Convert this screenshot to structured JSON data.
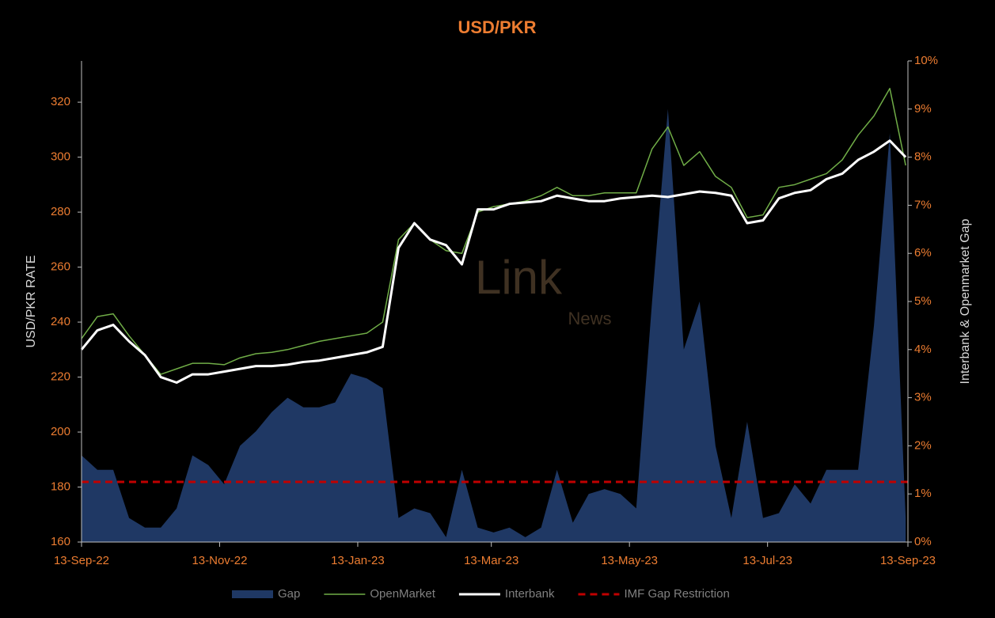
{
  "chart_data": {
    "type": "line",
    "title": "USD/PKR",
    "ylabel": "USD/PKR RATE",
    "y2label": "Interbank & Openmarket Gap",
    "watermark": [
      "Link",
      "News"
    ],
    "x": [
      "2022-09-13",
      "2022-09-20",
      "2022-09-27",
      "2022-10-04",
      "2022-10-11",
      "2022-10-18",
      "2022-10-25",
      "2022-11-01",
      "2022-11-08",
      "2022-11-15",
      "2022-11-22",
      "2022-11-29",
      "2022-12-06",
      "2022-12-13",
      "2022-12-20",
      "2022-12-27",
      "2023-01-03",
      "2023-01-10",
      "2023-01-17",
      "2023-01-24",
      "2023-01-31",
      "2023-02-07",
      "2023-02-14",
      "2023-02-21",
      "2023-02-28",
      "2023-03-07",
      "2023-03-14",
      "2023-03-21",
      "2023-03-28",
      "2023-04-04",
      "2023-04-11",
      "2023-04-18",
      "2023-04-25",
      "2023-05-02",
      "2023-05-09",
      "2023-05-16",
      "2023-05-23",
      "2023-05-30",
      "2023-06-06",
      "2023-06-13",
      "2023-06-20",
      "2023-06-27",
      "2023-07-04",
      "2023-07-11",
      "2023-07-18",
      "2023-07-25",
      "2023-08-01",
      "2023-08-08",
      "2023-08-15",
      "2023-08-22",
      "2023-08-29",
      "2023-09-05",
      "2023-09-12"
    ],
    "xlim": [
      "2022-09-13",
      "2023-09-13"
    ],
    "xticks": [
      {
        "value": "2022-09-13",
        "label": "13-Sep-22"
      },
      {
        "value": "2022-11-13",
        "label": "13-Nov-22"
      },
      {
        "value": "2023-01-13",
        "label": "13-Jan-23"
      },
      {
        "value": "2023-03-13",
        "label": "13-Mar-23"
      },
      {
        "value": "2023-05-13",
        "label": "13-May-23"
      },
      {
        "value": "2023-07-13",
        "label": "13-Jul-23"
      },
      {
        "value": "2023-09-13",
        "label": "13-Sep-23"
      }
    ],
    "ylim": [
      160,
      335
    ],
    "yticks": [
      160,
      180,
      200,
      220,
      240,
      260,
      280,
      300,
      320
    ],
    "y2lim": [
      0,
      10
    ],
    "y2ticks": [
      {
        "value": 0,
        "label": "0%"
      },
      {
        "value": 1,
        "label": "1%"
      },
      {
        "value": 2,
        "label": "2%"
      },
      {
        "value": 3,
        "label": "3%"
      },
      {
        "value": 4,
        "label": "4%"
      },
      {
        "value": 5,
        "label": "5%"
      },
      {
        "value": 6,
        "label": "6%"
      },
      {
        "value": 7,
        "label": "7%"
      },
      {
        "value": 8,
        "label": "8%"
      },
      {
        "value": 9,
        "label": "9%"
      },
      {
        "value": 10,
        "label": "10%"
      }
    ],
    "series": [
      {
        "name": "Gap",
        "type": "area",
        "axis": "y2",
        "color": "#1f3864",
        "values": [
          1.8,
          1.5,
          1.5,
          0.5,
          0.3,
          0.3,
          0.7,
          1.8,
          1.6,
          1.2,
          2.0,
          2.3,
          2.7,
          3.0,
          2.8,
          2.8,
          2.9,
          3.5,
          3.4,
          3.2,
          0.5,
          0.7,
          0.6,
          0.1,
          1.5,
          0.3,
          0.2,
          0.3,
          0.1,
          0.3,
          1.5,
          0.4,
          1.0,
          1.1,
          1.0,
          0.7,
          5.0,
          9.0,
          4.0,
          5.0,
          2.0,
          0.5,
          2.5,
          0.5,
          0.6,
          1.2,
          0.8,
          1.5,
          1.5,
          1.5,
          4.5,
          8.5,
          0.5
        ]
      },
      {
        "name": "OpenMarket",
        "type": "line",
        "color": "#70ad47",
        "width": 1.5,
        "values": [
          234,
          242,
          243,
          235,
          228,
          221,
          223,
          225,
          225,
          224.5,
          227,
          228.5,
          229,
          230,
          231.5,
          233,
          234,
          235,
          236,
          240,
          270,
          276,
          270,
          266,
          265,
          280,
          282,
          283,
          284,
          286,
          289,
          286,
          286,
          287,
          287,
          287,
          303,
          311,
          297,
          302,
          293,
          289,
          278,
          279,
          289,
          290,
          292,
          294,
          299,
          308,
          315,
          325,
          297
        ]
      },
      {
        "name": "Interbank",
        "type": "line",
        "color": "#ffffff",
        "width": 3,
        "values": [
          230,
          237,
          239,
          233,
          228,
          220,
          218,
          221,
          221,
          222,
          223,
          224,
          224,
          224.5,
          225.5,
          226,
          227,
          228,
          229,
          231,
          267,
          276,
          270,
          268,
          261,
          281,
          281,
          283,
          283.5,
          284,
          286,
          285,
          284,
          284,
          285,
          285.5,
          286,
          285.5,
          286.5,
          287.5,
          287,
          286,
          276,
          277,
          285,
          287,
          288,
          292,
          294,
          299,
          302,
          306,
          300
        ]
      }
    ],
    "hlines": [
      {
        "name": "IMF Gap Restriction",
        "value": 1.25,
        "axis": "y2",
        "color": "#c00000"
      }
    ]
  }
}
